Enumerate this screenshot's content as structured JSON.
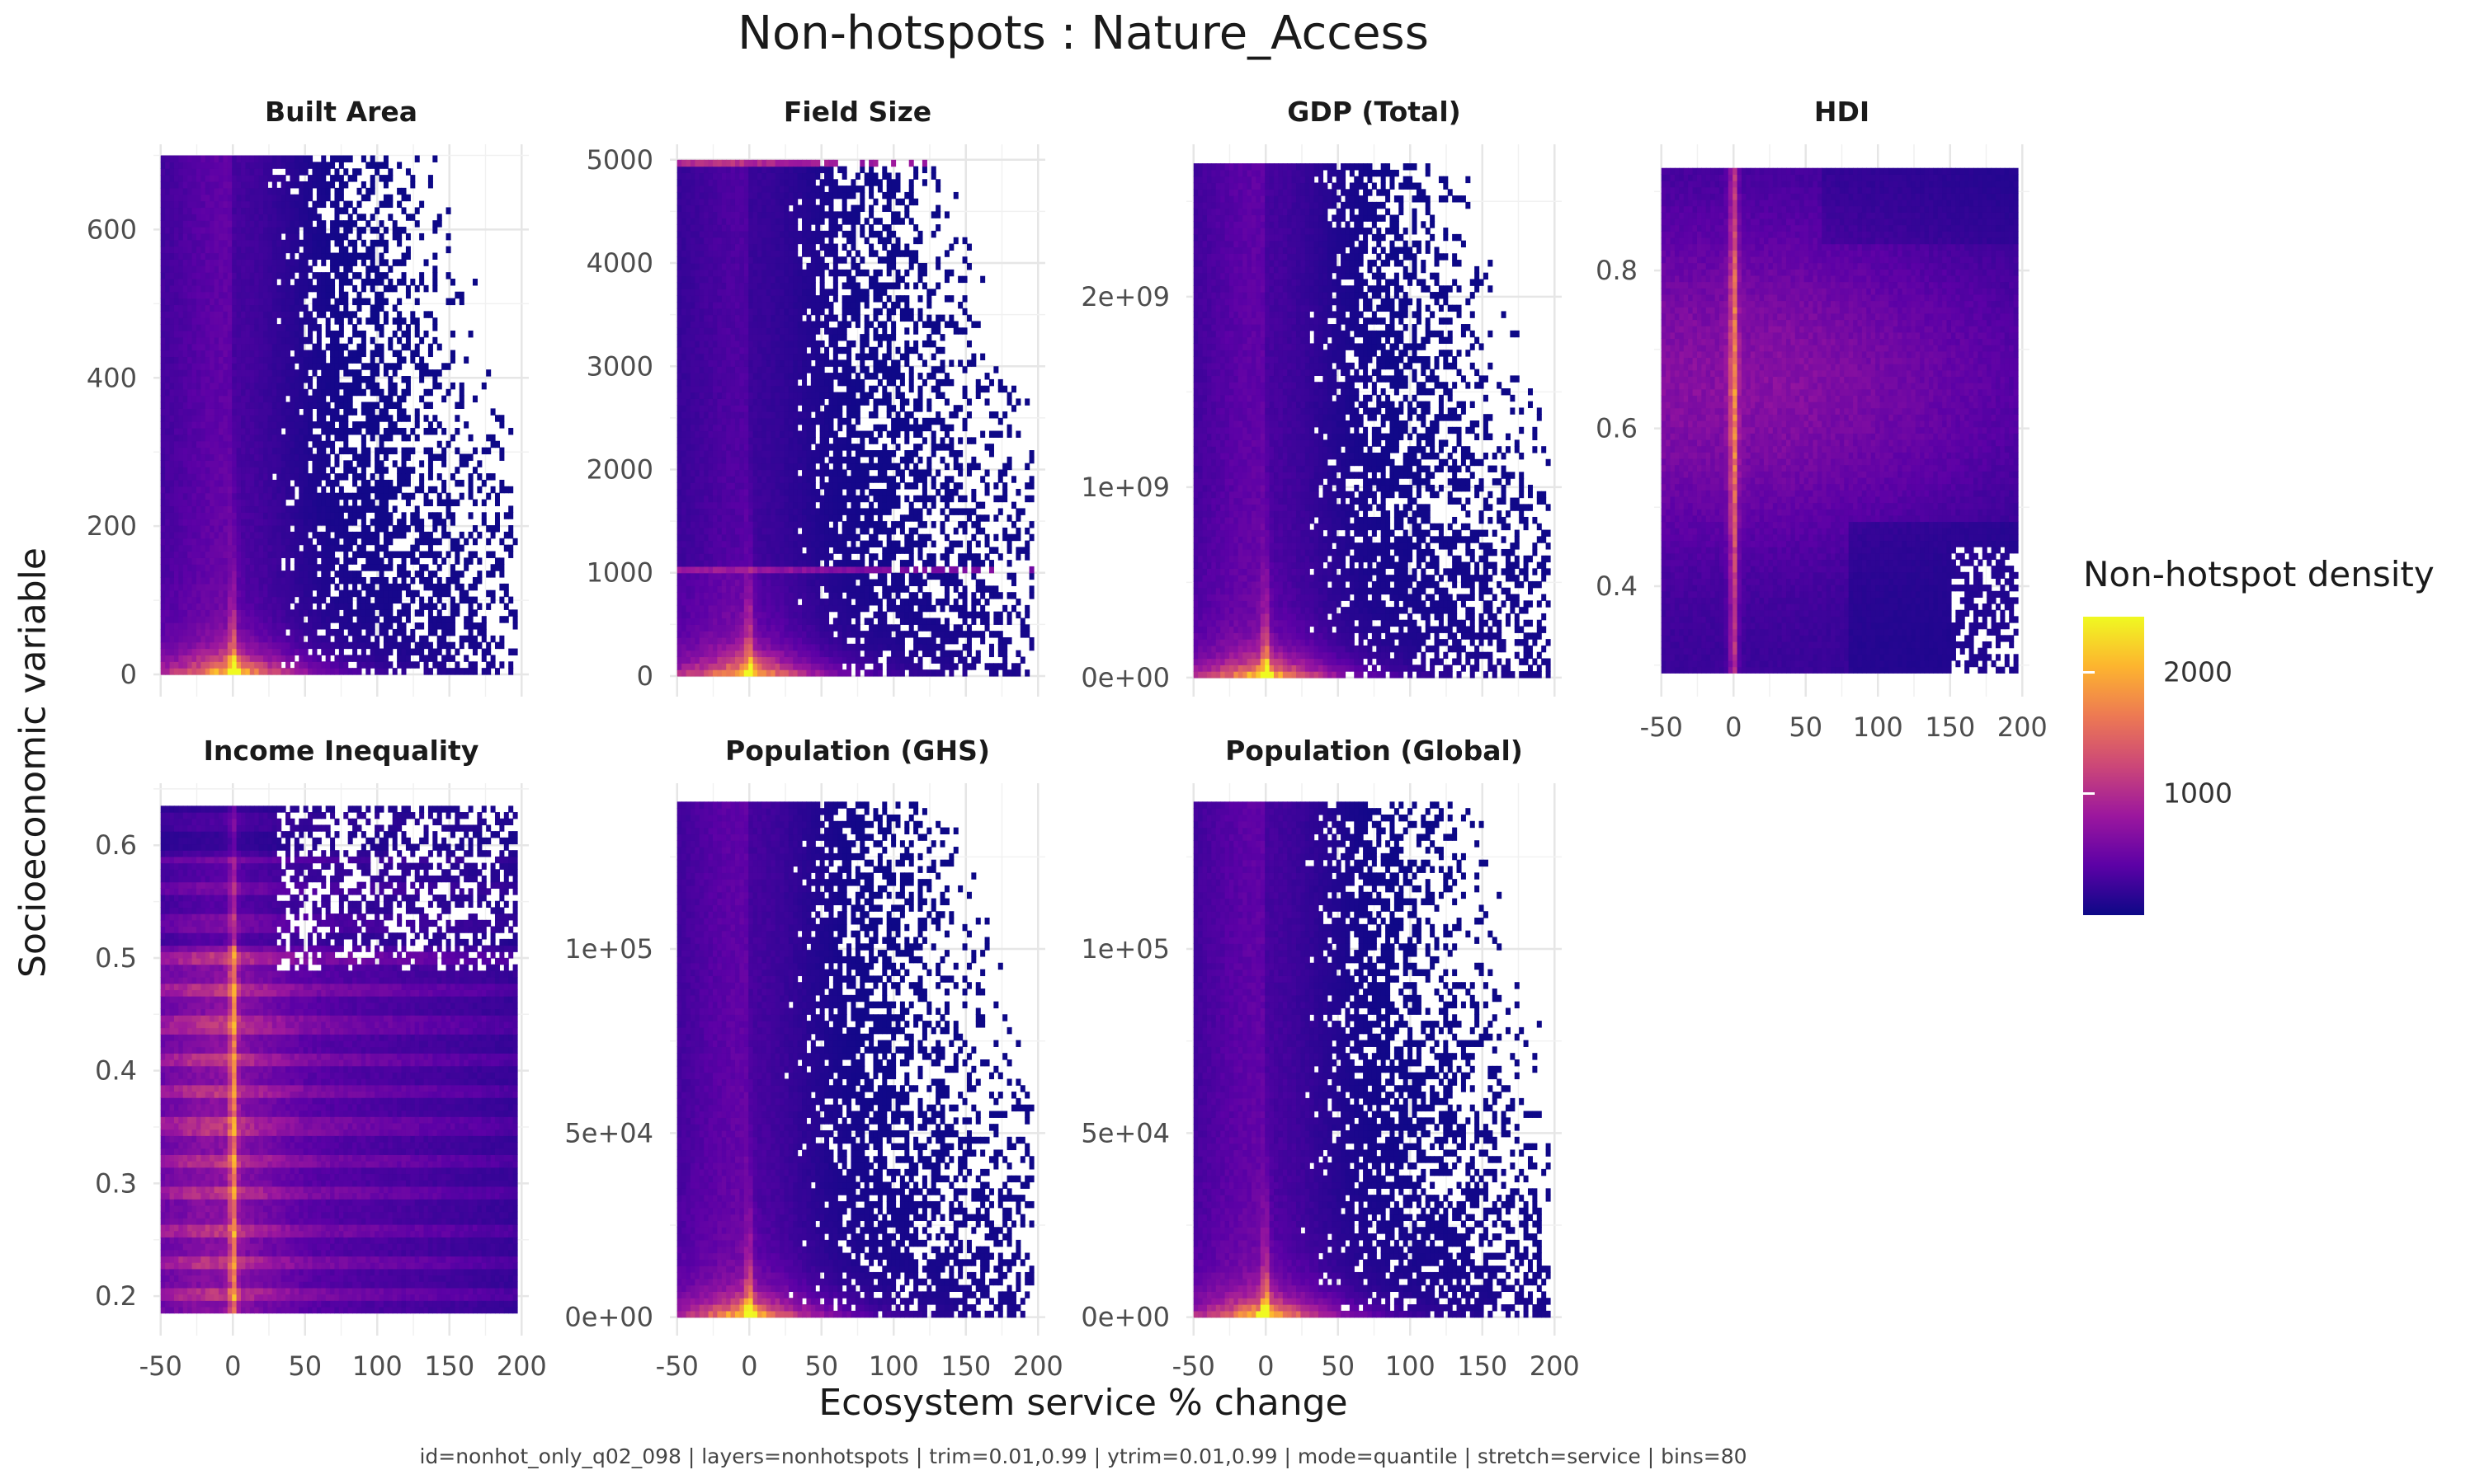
{
  "title": "Non-hotspots : Nature_Access",
  "xlabel": "Ecosystem service % change",
  "ylabel": "Socioeconomic variable",
  "caption": "id=nonhot_only_q02_098 | layers=nonhotspots | trim=0.01,0.99 | ytrim=0.01,0.99 | mode=quantile | stretch=service | bins=80",
  "legend": {
    "title": "Non-hotspot density",
    "ticks": [
      "1000",
      "2000"
    ],
    "tick_values": [
      1000,
      2000
    ],
    "range": [
      1,
      2450
    ],
    "colors": [
      "#0d0887",
      "#5c01a6",
      "#9c179e",
      "#cc4778",
      "#ed7953",
      "#fdb42f",
      "#f0f921"
    ]
  },
  "chart_data": [
    {
      "type": "heatmap",
      "title": "Built Area",
      "x_range": [
        -50,
        197
      ],
      "y_range": [
        0,
        700
      ],
      "x_ticks": [
        "-50",
        "0",
        "50",
        "100",
        "150",
        "200"
      ],
      "y_ticks": [
        "0",
        "200",
        "400",
        "600"
      ],
      "y_tick_values": [
        0,
        200,
        400,
        600
      ],
      "ylim": [
        -30,
        715
      ],
      "pattern": "skewed",
      "peak_density": 2400
    },
    {
      "type": "heatmap",
      "title": "Field Size",
      "x_range": [
        -50,
        197
      ],
      "y_range": [
        0,
        5000
      ],
      "x_ticks": [
        "-50",
        "0",
        "50",
        "100",
        "150",
        "200"
      ],
      "y_ticks": [
        "0",
        "1000",
        "2000",
        "3000",
        "4000",
        "5000"
      ],
      "y_tick_values": [
        0,
        1000,
        2000,
        3000,
        4000,
        5000
      ],
      "ylim": [
        -200,
        5150
      ],
      "pattern": "banded",
      "peak_density": 2400
    },
    {
      "type": "heatmap",
      "title": "GDP (Total)",
      "x_range": [
        -50,
        197
      ],
      "y_range": [
        0,
        2700000000
      ],
      "x_ticks": [
        "-50",
        "0",
        "50",
        "100",
        "150",
        "200"
      ],
      "y_ticks": [
        "0e+00",
        "1e+09",
        "2e+09"
      ],
      "y_tick_values": [
        0,
        1000000000,
        2000000000
      ],
      "ylim": [
        -100000000,
        2800000000
      ],
      "pattern": "skewed",
      "peak_density": 2400
    },
    {
      "type": "heatmap",
      "title": "HDI",
      "x_range": [
        -50,
        197
      ],
      "y_range": [
        0.29,
        0.93
      ],
      "x_ticks": [
        "-50",
        "0",
        "50",
        "100",
        "150",
        "200"
      ],
      "y_ticks": [
        "0.4",
        "0.6",
        "0.8"
      ],
      "y_tick_values": [
        0.4,
        0.6,
        0.8
      ],
      "ylim": [
        0.26,
        0.96
      ],
      "pattern": "dense",
      "peak_density": 2200
    },
    {
      "type": "heatmap",
      "title": "Income Inequality",
      "x_range": [
        -50,
        197
      ],
      "y_range": [
        0.185,
        0.635
      ],
      "x_ticks": [
        "-50",
        "0",
        "50",
        "100",
        "150",
        "200"
      ],
      "y_ticks": [
        "0.2",
        "0.3",
        "0.4",
        "0.5",
        "0.6"
      ],
      "y_tick_values": [
        0.2,
        0.3,
        0.4,
        0.5,
        0.6
      ],
      "ylim": [
        0.165,
        0.655
      ],
      "pattern": "striped",
      "peak_density": 2000
    },
    {
      "type": "heatmap",
      "title": "Population (GHS)",
      "x_range": [
        -50,
        197
      ],
      "y_range": [
        0,
        140000
      ],
      "x_ticks": [
        "-50",
        "0",
        "50",
        "100",
        "150",
        "200"
      ],
      "y_ticks": [
        "0e+00",
        "5e+04",
        "1e+05"
      ],
      "y_tick_values": [
        0,
        50000,
        100000
      ],
      "ylim": [
        -5000,
        145000
      ],
      "pattern": "skewed",
      "peak_density": 2400
    },
    {
      "type": "heatmap",
      "title": "Population (Global)",
      "x_range": [
        -50,
        197
      ],
      "y_range": [
        0,
        140000
      ],
      "x_ticks": [
        "-50",
        "0",
        "50",
        "100",
        "150",
        "200"
      ],
      "y_ticks": [
        "0e+00",
        "5e+04",
        "1e+05"
      ],
      "y_tick_values": [
        0,
        50000,
        100000
      ],
      "ylim": [
        -5000,
        145000
      ],
      "pattern": "skewed",
      "peak_density": 2400
    }
  ]
}
